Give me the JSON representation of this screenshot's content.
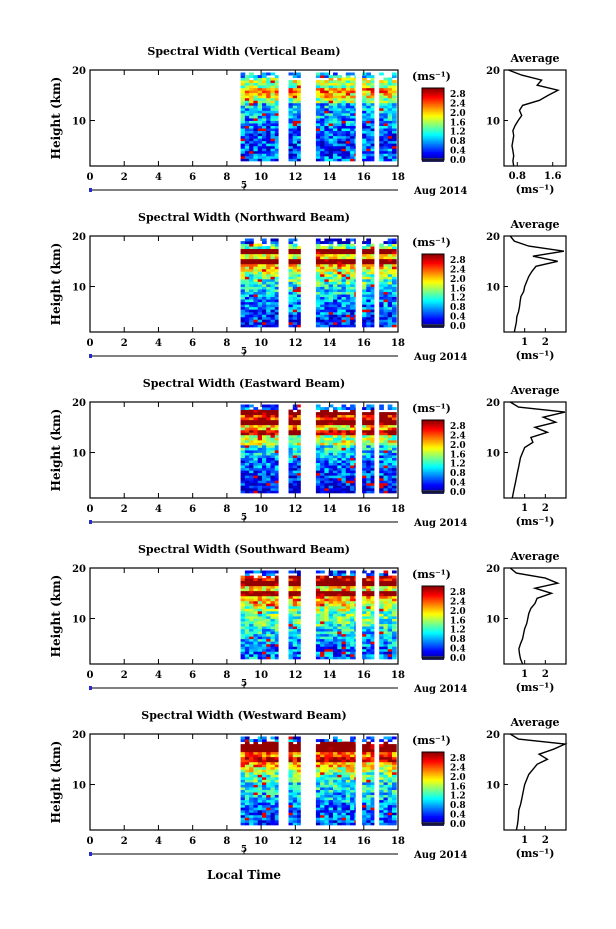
{
  "figure": {
    "xlabel": "Local Time",
    "date_label": "Aug 2014",
    "date_tick": "5",
    "avg_title": "Average",
    "avg_xlabel": "(ms⁻¹)",
    "ylabel": "Height (km)",
    "colorbar_unit": "(ms⁻¹)",
    "colorbar_ticks": [
      "2.8",
      "2.4",
      "2.0",
      "1.6",
      "1.2",
      "0.8",
      "0.4",
      "0.0"
    ]
  },
  "chart_data": [
    {
      "type": "heatmap",
      "title": "Spectral Width (Vertical Beam)",
      "xlabel": "Local Time",
      "ylabel": "Height (km)",
      "xlim": [
        0,
        18
      ],
      "ylim": [
        1,
        20
      ],
      "xticks": [
        0,
        2,
        4,
        6,
        8,
        10,
        12,
        14,
        16,
        18
      ],
      "yticks": [
        10,
        20
      ],
      "data_segments": [
        [
          8.8,
          11.0
        ],
        [
          11.6,
          12.3
        ],
        [
          13.2,
          15.5
        ],
        [
          15.9,
          16.6
        ],
        [
          16.9,
          17.9
        ]
      ],
      "colorbar": {
        "label": "(ms⁻¹)",
        "range": [
          0,
          2.8
        ],
        "ticks": [
          0.0,
          0.4,
          0.8,
          1.2,
          1.6,
          2.0,
          2.4,
          2.8
        ]
      },
      "profile": {
        "title": "Average",
        "xlabel": "(ms⁻¹)",
        "xticks": [
          0.8,
          1.6
        ],
        "xlim": [
          0.5,
          1.9
        ],
        "yticks": [
          10,
          20
        ],
        "height": [
          1,
          2,
          3,
          4,
          5,
          6,
          7,
          8,
          9,
          10,
          11,
          12,
          13,
          14,
          15,
          16,
          17,
          18,
          19,
          20
        ],
        "value": [
          0.72,
          0.7,
          0.72,
          0.7,
          0.68,
          0.7,
          0.72,
          0.7,
          0.75,
          0.82,
          0.9,
          0.85,
          0.92,
          1.3,
          1.5,
          1.72,
          1.25,
          1.35,
          0.9,
          0.6
        ]
      }
    },
    {
      "type": "heatmap",
      "title": "Spectral Width (Northward Beam)",
      "xlabel": "Local Time",
      "ylabel": "Height (km)",
      "xlim": [
        0,
        18
      ],
      "ylim": [
        1,
        20
      ],
      "xticks": [
        0,
        2,
        4,
        6,
        8,
        10,
        12,
        14,
        16,
        18
      ],
      "yticks": [
        10,
        20
      ],
      "data_segments": [
        [
          8.8,
          11.0
        ],
        [
          11.6,
          12.3
        ],
        [
          13.2,
          15.5
        ],
        [
          15.9,
          16.6
        ],
        [
          16.9,
          17.9
        ]
      ],
      "colorbar": {
        "label": "(ms⁻¹)",
        "range": [
          0,
          2.8
        ],
        "ticks": [
          0.0,
          0.4,
          0.8,
          1.2,
          1.6,
          2.0,
          2.4,
          2.8
        ]
      },
      "profile": {
        "title": "Average",
        "xlabel": "(ms⁻¹)",
        "xticks": [
          1,
          2
        ],
        "xlim": [
          0,
          3
        ],
        "yticks": [
          10,
          20
        ],
        "height": [
          1,
          2,
          3,
          4,
          5,
          6,
          7,
          8,
          9,
          10,
          11,
          12,
          13,
          14,
          15,
          16,
          17,
          18,
          19,
          20
        ],
        "value": [
          0.5,
          0.55,
          0.6,
          0.62,
          0.7,
          0.75,
          0.78,
          0.82,
          0.95,
          1.0,
          1.1,
          1.2,
          1.35,
          1.55,
          2.6,
          1.4,
          2.9,
          1.2,
          0.5,
          0.3
        ]
      }
    },
    {
      "type": "heatmap",
      "title": "Spectral Width (Eastward Beam)",
      "xlabel": "Local Time",
      "ylabel": "Height (km)",
      "xlim": [
        0,
        18
      ],
      "ylim": [
        1,
        20
      ],
      "xticks": [
        0,
        2,
        4,
        6,
        8,
        10,
        12,
        14,
        16,
        18
      ],
      "yticks": [
        10,
        20
      ],
      "data_segments": [
        [
          8.8,
          11.0
        ],
        [
          11.6,
          12.3
        ],
        [
          13.2,
          15.5
        ],
        [
          15.9,
          16.6
        ],
        [
          16.9,
          17.9
        ]
      ],
      "colorbar": {
        "label": "(ms⁻¹)",
        "range": [
          0,
          2.8
        ],
        "ticks": [
          0.0,
          0.4,
          0.8,
          1.2,
          1.6,
          2.0,
          2.4,
          2.8
        ]
      },
      "profile": {
        "title": "Average",
        "xlabel": "(ms⁻¹)",
        "xticks": [
          1,
          2
        ],
        "xlim": [
          0,
          3
        ],
        "yticks": [
          10,
          20
        ],
        "height": [
          1,
          2,
          3,
          4,
          5,
          6,
          7,
          8,
          9,
          10,
          11,
          12,
          13,
          14,
          15,
          16,
          17,
          18,
          19,
          20
        ],
        "value": [
          0.4,
          0.45,
          0.5,
          0.55,
          0.6,
          0.65,
          0.7,
          0.75,
          0.8,
          0.9,
          1.0,
          1.4,
          1.3,
          2.1,
          1.5,
          2.5,
          1.9,
          2.95,
          0.7,
          0.3
        ]
      }
    },
    {
      "type": "heatmap",
      "title": "Spectral Width (Southward Beam)",
      "xlabel": "Local Time",
      "ylabel": "Height (km)",
      "xlim": [
        0,
        18
      ],
      "ylim": [
        1,
        20
      ],
      "xticks": [
        0,
        2,
        4,
        6,
        8,
        10,
        12,
        14,
        16,
        18
      ],
      "yticks": [
        10,
        20
      ],
      "data_segments": [
        [
          8.8,
          11.0
        ],
        [
          11.6,
          12.3
        ],
        [
          13.2,
          15.5
        ],
        [
          15.9,
          16.6
        ],
        [
          16.9,
          17.9
        ]
      ],
      "colorbar": {
        "label": "(ms⁻¹)",
        "range": [
          0,
          2.8
        ],
        "ticks": [
          0.0,
          0.4,
          0.8,
          1.2,
          1.6,
          2.0,
          2.4,
          2.8
        ]
      },
      "profile": {
        "title": "Average",
        "xlabel": "(ms⁻¹)",
        "xticks": [
          1,
          2
        ],
        "xlim": [
          0,
          3
        ],
        "yticks": [
          10,
          20
        ],
        "height": [
          1,
          2,
          3,
          4,
          5,
          6,
          7,
          8,
          9,
          10,
          11,
          12,
          13,
          14,
          15,
          16,
          17,
          18,
          19,
          20
        ],
        "value": [
          0.9,
          0.8,
          0.75,
          0.72,
          0.8,
          0.9,
          0.95,
          1.0,
          1.1,
          1.15,
          1.2,
          1.3,
          1.5,
          1.6,
          2.3,
          1.5,
          2.6,
          2.0,
          0.6,
          0.3
        ]
      }
    },
    {
      "type": "heatmap",
      "title": "Spectral Width (Westward Beam)",
      "xlabel": "Local Time",
      "ylabel": "Height (km)",
      "xlim": [
        0,
        18
      ],
      "ylim": [
        1,
        20
      ],
      "xticks": [
        0,
        2,
        4,
        6,
        8,
        10,
        12,
        14,
        16,
        18
      ],
      "yticks": [
        10,
        20
      ],
      "data_segments": [
        [
          8.8,
          11.0
        ],
        [
          11.6,
          12.3
        ],
        [
          13.2,
          15.5
        ],
        [
          15.9,
          16.6
        ],
        [
          16.9,
          17.9
        ]
      ],
      "colorbar": {
        "label": "(ms⁻¹)",
        "range": [
          0,
          2.8
        ],
        "ticks": [
          0.0,
          0.4,
          0.8,
          1.2,
          1.6,
          2.0,
          2.4,
          2.8
        ]
      },
      "profile": {
        "title": "Average",
        "xlabel": "(ms⁻¹)",
        "xticks": [
          1,
          2
        ],
        "xlim": [
          0,
          3
        ],
        "yticks": [
          10,
          20
        ],
        "height": [
          1,
          2,
          3,
          4,
          5,
          6,
          7,
          8,
          9,
          10,
          11,
          12,
          13,
          14,
          15,
          16,
          17,
          18,
          19,
          20
        ],
        "value": [
          0.6,
          0.65,
          0.68,
          0.7,
          0.72,
          0.8,
          0.85,
          0.9,
          0.95,
          1.0,
          1.1,
          1.2,
          1.4,
          1.6,
          2.1,
          1.7,
          2.4,
          2.95,
          0.7,
          0.3
        ]
      }
    }
  ]
}
